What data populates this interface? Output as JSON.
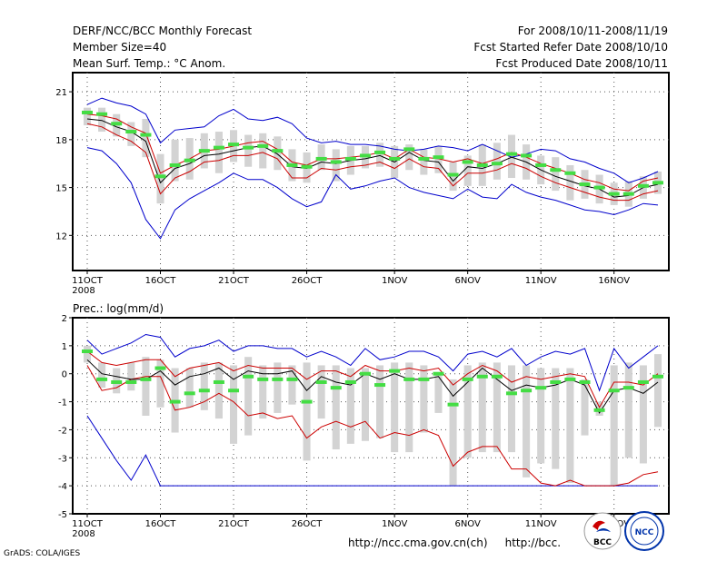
{
  "header": {
    "title": "DERF/NCC/BCC Monthly Forecast",
    "member_size": "Member Size=40",
    "variable": "Mean Surf. Temp.: °C Anom.",
    "period": "For 2008/10/11-2008/11/19",
    "start_date": "Fcst Started Refer Date 2008/10/10",
    "produced_date": "Fcst Produced Date 2008/10/11"
  },
  "footer": {
    "credit": "GrADS: COLA/IGES",
    "url": "http://ncc.cma.gov.cn(ch)     http://bcc."
  },
  "logos": {
    "bcc": "BCC",
    "ncc": "NCC"
  },
  "colors": {
    "spread": "#0000cc",
    "band": "#cc0000",
    "mean": "#000000",
    "box": "#d3d3d3",
    "median": "#44dd44"
  },
  "chart_data": [
    {
      "type": "line",
      "title": "",
      "ylabel": "Mean Surf. Temp.: °C Anom.",
      "ylim": [
        9.8,
        22.2
      ],
      "yticks": [
        12,
        15,
        18,
        21
      ],
      "days": 40,
      "xtick_labels": [
        "11OCT",
        "16OCT",
        "21OCT",
        "26OCT",
        "1NOV",
        "6NOV",
        "11NOV",
        "16NOV"
      ],
      "xtick_day": [
        0,
        5,
        10,
        15,
        21,
        26,
        31,
        36
      ],
      "year_label": "2008",
      "series": [
        {
          "name": "max",
          "values": [
            20.2,
            20.6,
            20.3,
            20.1,
            19.6,
            17.8,
            18.6,
            18.7,
            18.8,
            19.5,
            19.9,
            19.3,
            19.2,
            19.4,
            19.0,
            18.1,
            17.8,
            17.9,
            17.7,
            17.7,
            17.6,
            17.4,
            17.3,
            17.4,
            17.6,
            17.5,
            17.3,
            17.7,
            17.3,
            16.9,
            17.1,
            17.4,
            17.3,
            16.8,
            16.6,
            16.2,
            15.9,
            15.3,
            15.6,
            16.0
          ]
        },
        {
          "name": "upper",
          "values": [
            19.6,
            19.5,
            19.3,
            18.8,
            18.4,
            15.9,
            16.4,
            16.8,
            17.3,
            17.4,
            17.6,
            17.8,
            17.9,
            17.4,
            16.6,
            16.4,
            16.8,
            16.8,
            16.9,
            17.0,
            17.2,
            16.8,
            17.4,
            16.9,
            16.8,
            16.6,
            16.8,
            16.5,
            16.8,
            17.2,
            16.9,
            16.5,
            16.2,
            15.9,
            15.5,
            15.3,
            14.9,
            14.8,
            15.4,
            15.6
          ]
        },
        {
          "name": "mean",
          "values": [
            19.3,
            19.2,
            18.8,
            18.5,
            17.9,
            15.3,
            16.2,
            16.5,
            17.0,
            17.1,
            17.3,
            17.5,
            17.6,
            17.1,
            16.3,
            16.2,
            16.6,
            16.5,
            16.7,
            16.8,
            17.0,
            16.6,
            17.2,
            16.7,
            16.6,
            15.4,
            16.3,
            16.2,
            16.5,
            16.9,
            16.6,
            16.1,
            15.7,
            15.4,
            15.1,
            14.9,
            14.4,
            14.5,
            15.0,
            15.2
          ]
        },
        {
          "name": "lower",
          "values": [
            19.0,
            18.8,
            18.3,
            17.9,
            17.2,
            14.6,
            15.6,
            16.0,
            16.6,
            16.7,
            17.0,
            17.0,
            17.2,
            16.8,
            15.6,
            15.6,
            16.2,
            16.1,
            16.3,
            16.4,
            16.6,
            16.2,
            16.8,
            16.3,
            16.2,
            15.1,
            15.9,
            15.9,
            16.1,
            16.5,
            16.2,
            15.7,
            15.3,
            15.0,
            14.7,
            14.4,
            14.2,
            14.2,
            14.6,
            14.8
          ]
        },
        {
          "name": "min",
          "values": [
            17.5,
            17.3,
            16.5,
            15.3,
            13.0,
            11.8,
            13.6,
            14.3,
            14.8,
            15.3,
            15.9,
            15.5,
            15.5,
            15.0,
            14.3,
            13.8,
            14.1,
            15.8,
            14.9,
            15.1,
            15.4,
            15.6,
            15.0,
            14.7,
            14.5,
            14.3,
            14.9,
            14.4,
            14.3,
            15.2,
            14.7,
            14.4,
            14.2,
            13.9,
            13.6,
            13.5,
            13.3,
            13.6,
            14.0,
            13.9
          ]
        },
        {
          "name": "box_top",
          "values": [
            20.0,
            20.0,
            19.6,
            19.1,
            19.3,
            17.1,
            18.0,
            18.1,
            18.4,
            18.5,
            18.6,
            18.3,
            18.4,
            18.2,
            17.4,
            17.2,
            17.7,
            17.4,
            17.6,
            17.6,
            17.8,
            17.6,
            17.7,
            17.4,
            17.6,
            16.6,
            17.0,
            17.7,
            17.8,
            18.3,
            17.7,
            17.0,
            16.9,
            16.4,
            16.1,
            15.8,
            15.3,
            15.4,
            15.7,
            16.0
          ]
        },
        {
          "name": "box_bottom",
          "values": [
            18.9,
            18.5,
            18.2,
            17.6,
            16.9,
            14.0,
            15.4,
            15.5,
            16.2,
            15.9,
            16.6,
            16.3,
            16.2,
            16.1,
            15.4,
            15.3,
            16.1,
            15.4,
            15.8,
            16.2,
            16.3,
            15.6,
            16.1,
            15.8,
            15.9,
            14.8,
            15.1,
            15.1,
            15.5,
            15.6,
            15.5,
            15.2,
            14.8,
            14.2,
            14.3,
            14.0,
            13.9,
            13.8,
            14.3,
            14.6
          ]
        },
        {
          "name": "median",
          "values": [
            19.7,
            19.6,
            19.0,
            18.5,
            18.3,
            15.7,
            16.4,
            16.7,
            17.3,
            17.5,
            17.7,
            17.5,
            17.6,
            17.3,
            16.4,
            16.3,
            16.8,
            16.6,
            16.8,
            17.0,
            17.2,
            16.8,
            17.4,
            16.8,
            16.9,
            15.8,
            16.6,
            16.4,
            16.5,
            17.1,
            17.0,
            16.4,
            16.1,
            15.9,
            15.2,
            15.0,
            14.6,
            14.6,
            15.1,
            15.3
          ]
        }
      ]
    },
    {
      "type": "line",
      "title": "",
      "ylabel": "Prec.: log(mm/d)",
      "ylim": [
        -5,
        2
      ],
      "yticks": [
        -5,
        -4,
        -3,
        -2,
        -1,
        0,
        1,
        2
      ],
      "days": 40,
      "xtick_labels": [
        "11OCT",
        "16OCT",
        "21OCT",
        "26OCT",
        "1NOV",
        "6NOV",
        "11NOV",
        "16NOV"
      ],
      "xtick_day": [
        0,
        5,
        10,
        15,
        21,
        26,
        31,
        36
      ],
      "year_label": "2008",
      "series": [
        {
          "name": "max",
          "values": [
            1.2,
            0.7,
            0.9,
            1.1,
            1.4,
            1.3,
            0.6,
            0.9,
            1.0,
            1.2,
            0.8,
            1.0,
            1.0,
            0.9,
            0.9,
            0.6,
            0.8,
            0.6,
            0.3,
            0.9,
            0.5,
            0.6,
            0.8,
            0.8,
            0.6,
            0.1,
            0.7,
            0.8,
            0.6,
            0.9,
            0.3,
            0.6,
            0.8,
            0.7,
            0.9,
            -0.6,
            0.9,
            0.2,
            0.6,
            1.0
          ]
        },
        {
          "name": "upper",
          "values": [
            0.8,
            0.4,
            0.3,
            0.4,
            0.5,
            0.5,
            -0.1,
            0.2,
            0.3,
            0.4,
            0.1,
            0.3,
            0.2,
            0.2,
            0.2,
            -0.2,
            0.1,
            0.1,
            -0.1,
            0.3,
            0.1,
            0.1,
            0.2,
            0.1,
            0.2,
            -0.4,
            0.0,
            0.3,
            0.1,
            -0.3,
            -0.1,
            -0.2,
            -0.1,
            0.0,
            -0.1,
            -1.2,
            -0.3,
            -0.3,
            -0.4,
            0.0
          ]
        },
        {
          "name": "mean",
          "values": [
            0.5,
            0.0,
            -0.1,
            -0.2,
            -0.2,
            0.1,
            -0.4,
            -0.1,
            0.0,
            0.2,
            -0.2,
            0.1,
            0.0,
            0.0,
            0.1,
            -0.6,
            -0.1,
            -0.3,
            -0.4,
            0.0,
            -0.2,
            0.0,
            -0.2,
            -0.2,
            -0.1,
            -0.8,
            -0.3,
            0.2,
            -0.2,
            -0.6,
            -0.4,
            -0.5,
            -0.4,
            -0.2,
            -0.4,
            -1.4,
            -0.6,
            -0.5,
            -0.7,
            -0.3
          ]
        },
        {
          "name": "lower",
          "values": [
            0.3,
            -0.6,
            -0.5,
            -0.2,
            -0.1,
            -0.1,
            -1.3,
            -1.2,
            -1.0,
            -0.7,
            -1.0,
            -1.5,
            -1.4,
            -1.6,
            -1.5,
            -2.3,
            -1.9,
            -1.7,
            -1.9,
            -1.7,
            -2.3,
            -2.1,
            -2.2,
            -2.0,
            -2.2,
            -3.3,
            -2.8,
            -2.6,
            -2.6,
            -3.4,
            -3.4,
            -3.9,
            -4.0,
            -3.8,
            -4.0,
            -4.0,
            -4.0,
            -3.9,
            -3.6,
            -3.5
          ]
        },
        {
          "name": "min",
          "values": [
            -1.5,
            -2.3,
            -3.1,
            -3.8,
            -2.9,
            -4.0,
            -4.0,
            -4.0,
            -4.0,
            -4.0,
            -4.0,
            -4.0,
            -4.0,
            -4.0,
            -4.0,
            -4.0,
            -4.0,
            -4.0,
            -4.0,
            -4.0,
            -4.0,
            -4.0,
            -4.0,
            -4.0,
            -4.0,
            -4.0,
            -4.0,
            -4.0,
            -4.0,
            -4.0,
            -4.0,
            -4.0,
            -4.0,
            -4.0,
            -4.0,
            -4.0,
            -4.0,
            -4.0,
            -4.0,
            -4.0
          ]
        },
        {
          "name": "box_top",
          "values": [
            1.0,
            0.4,
            0.2,
            0.4,
            0.6,
            0.5,
            0.2,
            0.2,
            0.4,
            0.4,
            0.3,
            0.6,
            0.3,
            0.4,
            0.3,
            0.4,
            0.3,
            0.3,
            0.2,
            0.2,
            0.3,
            0.4,
            0.4,
            0.3,
            0.0,
            -0.2,
            0.3,
            0.4,
            0.4,
            0.3,
            0.3,
            0.2,
            0.2,
            0.2,
            -0.2,
            -1.0,
            0.3,
            0.4,
            0.3,
            0.7
          ]
        },
        {
          "name": "box_bottom",
          "values": [
            0.4,
            -0.5,
            -0.7,
            -0.6,
            -1.5,
            -1.2,
            -2.1,
            -1.2,
            -1.3,
            -1.6,
            -2.5,
            -2.2,
            -1.6,
            -1.4,
            -1.1,
            -3.1,
            -1.6,
            -2.7,
            -2.5,
            -2.4,
            -2.3,
            -2.8,
            -2.8,
            -2.1,
            -1.4,
            -4.0,
            -3.0,
            -2.8,
            -2.8,
            -2.8,
            -3.7,
            -3.2,
            -3.4,
            -3.9,
            -2.2,
            -1.5,
            -4.0,
            -3.0,
            -3.2,
            -1.9
          ]
        },
        {
          "name": "median",
          "values": [
            0.8,
            -0.2,
            -0.3,
            -0.3,
            -0.2,
            0.2,
            -1.0,
            -0.7,
            -0.6,
            -0.3,
            -0.6,
            -0.1,
            -0.2,
            -0.2,
            -0.2,
            -1.0,
            -0.3,
            -0.5,
            -0.3,
            0.0,
            -0.4,
            0.1,
            -0.2,
            -0.2,
            0.0,
            -1.1,
            -0.2,
            -0.1,
            -0.1,
            -0.7,
            -0.6,
            -0.5,
            -0.3,
            -0.2,
            -0.3,
            -1.3,
            -0.6,
            -0.5,
            -0.3,
            -0.1
          ]
        }
      ]
    }
  ]
}
